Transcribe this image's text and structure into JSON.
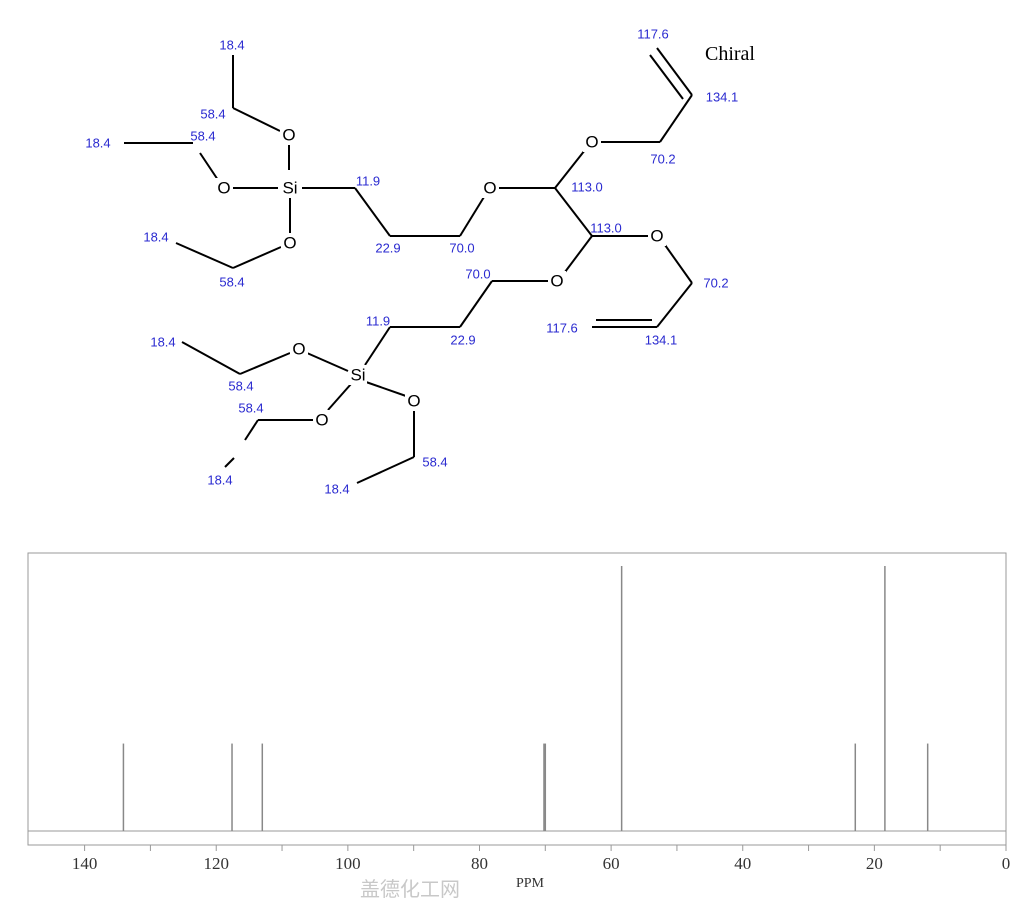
{
  "structure": {
    "chiral_label": "Chiral",
    "atoms": [
      "Si",
      "O",
      "O",
      "O",
      "O",
      "O",
      "O",
      "O",
      "Si",
      "O",
      "O",
      "O"
    ],
    "shift_labels": [
      "18.4",
      "58.4",
      "18.4",
      "58.4",
      "18.4",
      "58.4",
      "11.9",
      "22.9",
      "70.0",
      "113.0",
      "70.2",
      "134.1",
      "117.6",
      "113.0",
      "70.2",
      "134.1",
      "117.6",
      "70.0",
      "22.9",
      "11.9",
      "58.4",
      "18.4",
      "58.4",
      "18.4",
      "58.4",
      "18.4"
    ]
  },
  "watermark": "盖德化工网",
  "chart_data": {
    "type": "bar",
    "title": "",
    "xlabel": "PPM",
    "ylabel": "",
    "xlim": [
      148.6,
      0
    ],
    "xticks": [
      "140",
      "120",
      "100",
      "80",
      "60",
      "40",
      "20",
      "0"
    ],
    "x_minor_ticks_every": 10,
    "grid": false,
    "peaks": [
      {
        "ppm": 134.1,
        "intensity": 0.33
      },
      {
        "ppm": 117.6,
        "intensity": 0.33
      },
      {
        "ppm": 113.0,
        "intensity": 0.33
      },
      {
        "ppm": 70.2,
        "intensity": 0.33
      },
      {
        "ppm": 70.0,
        "intensity": 0.33
      },
      {
        "ppm": 58.4,
        "intensity": 1.0
      },
      {
        "ppm": 22.9,
        "intensity": 0.33
      },
      {
        "ppm": 18.4,
        "intensity": 1.0
      },
      {
        "ppm": 11.9,
        "intensity": 0.33
      }
    ],
    "colors": {
      "peak": "#888888",
      "frame": "#888888",
      "shift_label": "#2a2ad0"
    }
  }
}
